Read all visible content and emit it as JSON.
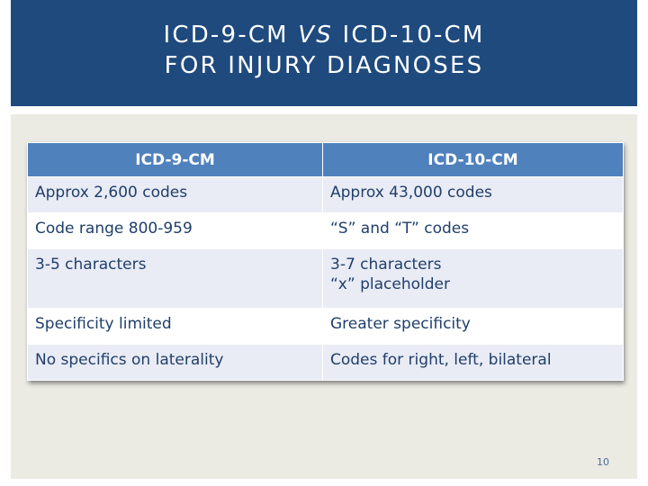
{
  "slide": {
    "title": {
      "line1_part1": "ICD-9-CM ",
      "line1_italic": "VS",
      "line1_part2": " ICD-10-CM",
      "line2": "FOR INJURY DIAGNOSES"
    },
    "page_number": "10"
  },
  "comparison_table": {
    "headers": [
      "ICD-9-CM",
      "ICD-10-CM"
    ],
    "rows": [
      {
        "icd9": [
          "Approx 2,600 codes"
        ],
        "icd10": [
          "Approx 43,000 codes"
        ]
      },
      {
        "icd9": [
          "Code range 800-959"
        ],
        "icd10": [
          "“S” and “T” codes"
        ]
      },
      {
        "icd9": [
          "3-5 characters"
        ],
        "icd10": [
          "3-7 characters",
          "“x” placeholder"
        ]
      },
      {
        "icd9": [
          "Specificity limited"
        ],
        "icd10": [
          "Greater specificity"
        ]
      },
      {
        "icd9": [
          "No specifics on laterality"
        ],
        "icd10": [
          "Codes for right, left, bilateral"
        ]
      }
    ]
  },
  "colors": {
    "title_band": "#1f4a7e",
    "content_background": "#ebeae3",
    "table_header": "#4f81bd",
    "row_band": "#e9ebf5",
    "cell_text": "#1f3f6a"
  }
}
